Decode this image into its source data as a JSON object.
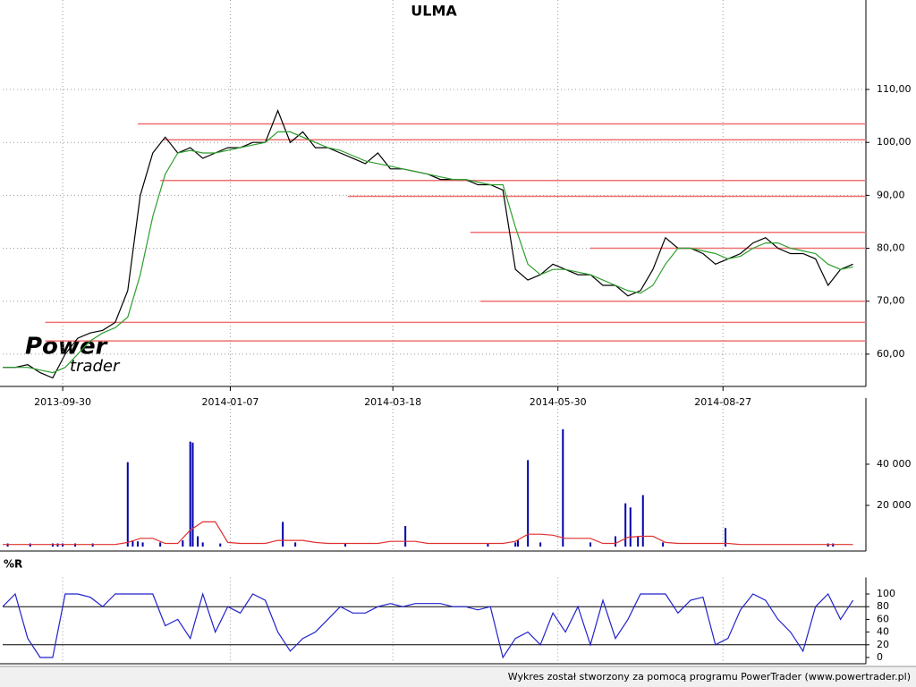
{
  "chart_data": [
    {
      "type": "line",
      "title": "ULMA",
      "xlim": [
        0,
        343
      ],
      "ylim": [
        53.9,
        126.9
      ],
      "xticks": [
        {
          "value": 24,
          "label": "2013-09-30"
        },
        {
          "value": 91,
          "label": "2014-01-07"
        },
        {
          "value": 156,
          "label": "2014-03-18"
        },
        {
          "value": 222,
          "label": "2014-05-30"
        },
        {
          "value": 288,
          "label": "2014-08-27"
        }
      ],
      "yticks": [
        {
          "value": 60,
          "label": "60,00"
        },
        {
          "value": 70,
          "label": "70,00"
        },
        {
          "value": 80,
          "label": "80,00"
        },
        {
          "value": 90,
          "label": "90,00"
        },
        {
          "value": 100,
          "label": "100,00"
        },
        {
          "value": 110,
          "label": "110,00"
        }
      ],
      "grid": true,
      "x": [
        0,
        5,
        10,
        15,
        20,
        25,
        30,
        35,
        40,
        45,
        50,
        55,
        60,
        65,
        70,
        75,
        80,
        85,
        90,
        95,
        100,
        105,
        110,
        115,
        120,
        125,
        130,
        135,
        140,
        145,
        150,
        155,
        160,
        165,
        170,
        175,
        180,
        185,
        190,
        195,
        200,
        205,
        210,
        215,
        220,
        225,
        230,
        235,
        240,
        245,
        250,
        255,
        260,
        265,
        270,
        275,
        280,
        285,
        290,
        295,
        300,
        305,
        310,
        315,
        320,
        325,
        330,
        335,
        340
      ],
      "series": [
        {
          "color": "#000000",
          "values": [
            57.5,
            57.5,
            58,
            56.5,
            55.5,
            60,
            63,
            64,
            64.5,
            66,
            72,
            90,
            98,
            101,
            98,
            99,
            97,
            98,
            99,
            99,
            100,
            100,
            106,
            100,
            102,
            99,
            99,
            98,
            97,
            96,
            98,
            95,
            95,
            94.5,
            94,
            93,
            93,
            93,
            92,
            92,
            91,
            76,
            74,
            75,
            77,
            76,
            75,
            75,
            73,
            73,
            71,
            72,
            76,
            82,
            80,
            80,
            79,
            77,
            78,
            79,
            81,
            82,
            80,
            79,
            79,
            78,
            73,
            76,
            77
          ]
        },
        {
          "color": "#2e9e2e",
          "values": [
            57.5,
            57.5,
            57.5,
            57,
            56.5,
            57.5,
            60,
            62.5,
            64,
            65,
            67,
            75,
            86,
            94,
            98,
            98.5,
            98,
            98,
            98.5,
            99,
            99.5,
            100,
            102,
            102,
            101,
            100,
            99,
            98.5,
            97.5,
            96.5,
            96,
            95.5,
            95,
            94.5,
            94,
            93.5,
            93,
            93,
            92.5,
            92,
            92,
            84,
            77,
            75,
            76,
            76,
            75.5,
            75,
            74,
            73,
            72,
            71.5,
            73,
            77,
            80,
            80,
            79.5,
            79,
            78,
            78.5,
            80,
            81,
            81,
            80,
            79.5,
            79,
            77,
            76,
            76.5
          ]
        }
      ],
      "levels": {
        "color": "#f07070",
        "values": [
          103.5,
          100.5,
          92.8,
          89.8,
          83,
          80,
          70,
          66,
          62.5
        ],
        "starts": [
          54,
          64,
          63,
          138,
          187,
          235,
          191,
          17,
          17
        ]
      }
    },
    {
      "type": "bar",
      "xlim": [
        0,
        343
      ],
      "ylim": [
        0,
        67800
      ],
      "yticks": [
        {
          "value": 20000,
          "label": "20 000"
        },
        {
          "value": 40000,
          "label": "40 000"
        }
      ],
      "x": [
        0,
        5,
        10,
        15,
        20,
        25,
        30,
        35,
        40,
        45,
        50,
        55,
        60,
        65,
        70,
        75,
        80,
        85,
        90,
        95,
        100,
        105,
        110,
        115,
        120,
        125,
        130,
        135,
        140,
        145,
        150,
        155,
        160,
        165,
        170,
        175,
        180,
        185,
        190,
        195,
        200,
        205,
        210,
        215,
        220,
        225,
        230,
        235,
        240,
        245,
        250,
        255,
        260,
        265,
        270,
        275,
        280,
        285,
        290,
        295,
        300,
        305,
        310,
        315,
        320,
        325,
        330,
        335,
        340
      ],
      "series": [
        {
          "type": "bar",
          "color": "#0000aa",
          "x": [
            2,
            11,
            20,
            22,
            24,
            29,
            36,
            50,
            52,
            54,
            56,
            63,
            72,
            75,
            76,
            78,
            80,
            87,
            112,
            117,
            137,
            161,
            194,
            205,
            206,
            210,
            215,
            224,
            235,
            245,
            249,
            251,
            254,
            256,
            264,
            289,
            330,
            332
          ],
          "values": [
            1500,
            1500,
            1500,
            1500,
            1500,
            1500,
            1500,
            41000,
            3000,
            2500,
            2000,
            2000,
            3000,
            51000,
            50500,
            5000,
            2000,
            1500,
            12000,
            2000,
            1500,
            10000,
            1500,
            2000,
            3000,
            42000,
            2000,
            57000,
            2000,
            5000,
            21000,
            19000,
            5000,
            25000,
            2000,
            9000,
            1500,
            1500
          ]
        },
        {
          "type": "line",
          "color": "#e03030",
          "values": [
            1000,
            1000,
            1000,
            1000,
            1000,
            1000,
            1000,
            1000,
            1000,
            1000,
            2000,
            4000,
            4000,
            1500,
            1500,
            8000,
            12000,
            12000,
            2000,
            1500,
            1500,
            1500,
            3000,
            3000,
            3000,
            2000,
            1500,
            1500,
            1500,
            1500,
            1500,
            2500,
            2500,
            2500,
            1500,
            1500,
            1500,
            1500,
            1500,
            1500,
            1500,
            2500,
            6000,
            6000,
            5500,
            4000,
            4000,
            4000,
            1500,
            1500,
            4500,
            5000,
            5000,
            2000,
            1500,
            1500,
            1500,
            1500,
            1500,
            1000,
            1000,
            1000,
            1000,
            1000,
            1000,
            1000,
            1000,
            1000,
            1000
          ]
        }
      ]
    },
    {
      "type": "line",
      "title": "%R",
      "xlim": [
        0,
        343
      ],
      "ylim": [
        -10,
        112
      ],
      "yticks": [
        0,
        20,
        40,
        60,
        80,
        100
      ],
      "x": [
        0,
        5,
        10,
        15,
        20,
        25,
        30,
        35,
        40,
        45,
        50,
        55,
        60,
        65,
        70,
        75,
        80,
        85,
        90,
        95,
        100,
        105,
        110,
        115,
        120,
        125,
        130,
        135,
        140,
        145,
        150,
        155,
        160,
        165,
        170,
        175,
        180,
        185,
        190,
        195,
        200,
        205,
        210,
        215,
        220,
        225,
        230,
        235,
        240,
        245,
        250,
        255,
        260,
        265,
        270,
        275,
        280,
        285,
        290,
        295,
        300,
        305,
        310,
        315,
        320,
        325,
        330,
        335,
        340
      ],
      "series": [
        {
          "color": "#2222cc",
          "values": [
            80,
            100,
            30,
            0,
            0,
            100,
            100,
            95,
            80,
            100,
            100,
            100,
            100,
            50,
            60,
            30,
            100,
            40,
            80,
            70,
            100,
            90,
            40,
            10,
            30,
            40,
            60,
            80,
            70,
            70,
            80,
            85,
            80,
            85,
            85,
            85,
            80,
            80,
            75,
            80,
            0,
            30,
            40,
            20,
            70,
            40,
            80,
            20,
            90,
            30,
            60,
            100,
            100,
            100,
            70,
            90,
            95,
            20,
            30,
            75,
            100,
            90,
            60,
            40,
            10,
            80,
            100,
            60,
            90
          ]
        }
      ],
      "levels": {
        "color": "#000000",
        "values": [
          20,
          80
        ],
        "starts": [
          0,
          0
        ]
      }
    }
  ],
  "watermark": [
    "Power",
    "trader"
  ],
  "footer": "Wykres został stworzony za pomocą programu PowerTrader (www.powertrader.pl)"
}
